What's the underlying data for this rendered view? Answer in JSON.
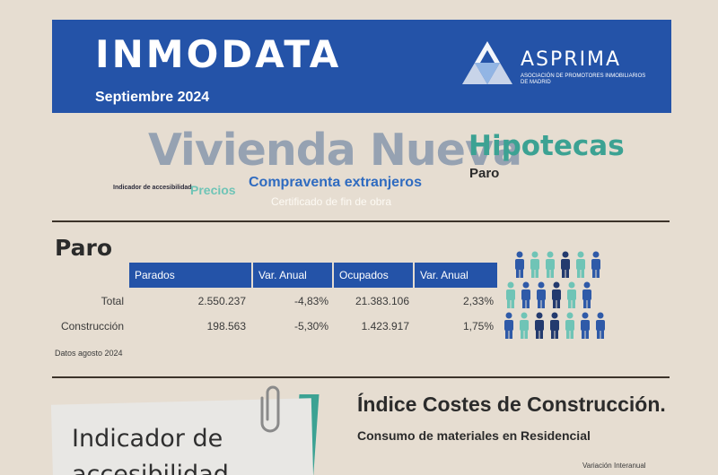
{
  "banner": {
    "title": "INMODATA",
    "subtitle": "Septiembre 2024",
    "logo_name": "ASPRIMA",
    "logo_tagline": "ASOCIACIÓN DE PROMOTORES INMOBILIARIOS DE MADRID",
    "bg_color": "#2453a8"
  },
  "word_cloud": {
    "vivienda": "Vivienda Nueva",
    "hipotecas": "Hipotecas",
    "paro": "Paro",
    "indicador": "Indicador de accesibilidad",
    "precios": "Precios",
    "compraventa": "Compraventa extranjeros",
    "certificado": "Certificado de fin de obra"
  },
  "paro": {
    "heading": "Paro",
    "columns": [
      "Parados",
      "Var. Anual",
      "Ocupados",
      "Var. Anual"
    ],
    "rows": [
      {
        "label": "Total",
        "values": [
          "2.550.237",
          "-4,83%",
          "21.383.106",
          "2,33%"
        ]
      },
      {
        "label": "Construcción",
        "values": [
          "198.563",
          "-5,30%",
          "1.423.917",
          "1,75%"
        ]
      }
    ],
    "note": "Datos agosto 2024",
    "icon": "people-group-icon"
  },
  "indicador_card": {
    "text": "Indicador de accesibilidad",
    "icon": "paperclip-icon"
  },
  "costes": {
    "title": "Índice Costes de Construcción.",
    "subtitle": "Consumo de materiales en Residencial",
    "variacion": "Variación Interanual"
  },
  "colors": {
    "accent_teal": "#3ca293",
    "light_teal": "#6fc4b6",
    "navy": "#233a6e",
    "royal": "#2f5aa8"
  }
}
